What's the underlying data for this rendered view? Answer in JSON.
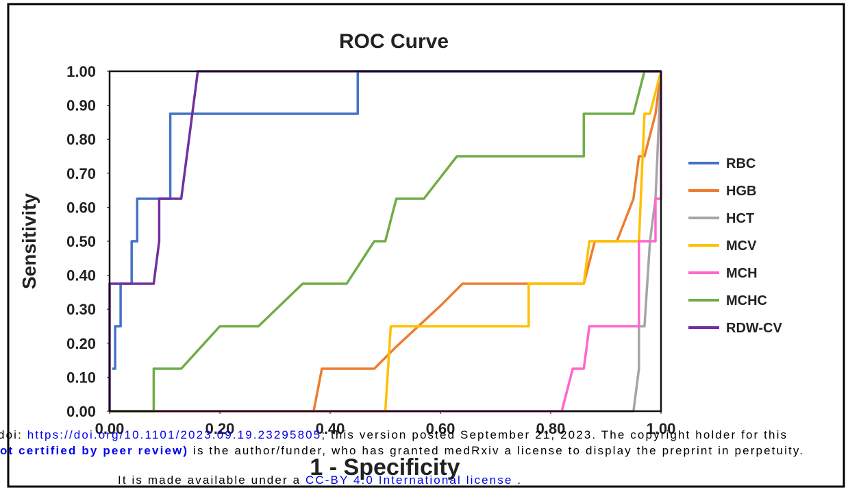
{
  "chart_data": {
    "type": "line",
    "title": "ROC Curve",
    "xlabel": "1 - Specificity",
    "ylabel": "Sensitivity",
    "xlim": [
      0,
      1
    ],
    "ylim": [
      0,
      1
    ],
    "xticks": [
      {
        "value": 0,
        "label": "0.00"
      },
      {
        "value": 0.2,
        "label": "0.20"
      },
      {
        "value": 0.4,
        "label": "0.40"
      },
      {
        "value": 0.6,
        "label": "0.60"
      },
      {
        "value": 0.8,
        "label": "0.80"
      },
      {
        "value": 1,
        "label": "1.00"
      }
    ],
    "yticks": [
      {
        "value": 0,
        "label": "0.00"
      },
      {
        "value": 0.1,
        "label": "0.10"
      },
      {
        "value": 0.2,
        "label": "0.20"
      },
      {
        "value": 0.3,
        "label": "0.30"
      },
      {
        "value": 0.4,
        "label": "0.40"
      },
      {
        "value": 0.5,
        "label": "0.50"
      },
      {
        "value": 0.6,
        "label": "0.60"
      },
      {
        "value": 0.7,
        "label": "0.70"
      },
      {
        "value": 0.8,
        "label": "0.80"
      },
      {
        "value": 0.9,
        "label": "0.90"
      },
      {
        "value": 1,
        "label": "1.00"
      }
    ],
    "grid": false,
    "legend": "right",
    "series": [
      {
        "name": "RBC",
        "color": "#4472c4",
        "x": [
          0.005,
          0.01,
          0.01,
          0.02,
          0.02,
          0.04,
          0.04,
          0.05,
          0.05,
          0.11,
          0.11,
          0.45,
          0.45,
          1.0
        ],
        "values": [
          0.125,
          0.125,
          0.25,
          0.25,
          0.375,
          0.375,
          0.5,
          0.5,
          0.625,
          0.625,
          0.875,
          0.875,
          1.0,
          1.0
        ]
      },
      {
        "name": "HGB",
        "color": "#ed7d31",
        "x": [
          0,
          0.37,
          0.385,
          0.48,
          0.52,
          0.6,
          0.64,
          0.86,
          0.88,
          0.92,
          0.95,
          0.96,
          0.97,
          0.99,
          1.0
        ],
        "values": [
          0,
          0,
          0.125,
          0.125,
          0.19,
          0.31,
          0.375,
          0.375,
          0.5,
          0.5,
          0.625,
          0.75,
          0.75,
          0.875,
          1.0
        ]
      },
      {
        "name": "HCT",
        "color": "#a5a5a5",
        "x": [
          0,
          0.95,
          0.96,
          0.96,
          0.97,
          0.98,
          0.99,
          1.0
        ],
        "values": [
          0,
          0,
          0.125,
          0.25,
          0.25,
          0.5,
          0.625,
          1.0
        ]
      },
      {
        "name": "MCV",
        "color": "#ffc000",
        "x": [
          0,
          0.5,
          0.51,
          0.76,
          0.76,
          0.86,
          0.87,
          0.96,
          0.97,
          0.98,
          1.0
        ],
        "values": [
          0,
          0,
          0.25,
          0.25,
          0.375,
          0.375,
          0.5,
          0.5,
          0.875,
          0.875,
          1.0
        ]
      },
      {
        "name": "MCH",
        "color": "#ff66cc",
        "x": [
          0,
          0.82,
          0.84,
          0.86,
          0.87,
          0.96,
          0.96,
          0.99,
          0.99,
          1.0,
          1.0
        ],
        "values": [
          0,
          0,
          0.125,
          0.125,
          0.25,
          0.25,
          0.5,
          0.5,
          0.625,
          0.625,
          1.0
        ]
      },
      {
        "name": "MCHC",
        "color": "#70ad47",
        "x": [
          0,
          0.08,
          0.08,
          0.13,
          0.2,
          0.27,
          0.35,
          0.43,
          0.48,
          0.5,
          0.52,
          0.57,
          0.63,
          0.86,
          0.86,
          0.95,
          0.97,
          1.0
        ],
        "values": [
          0,
          0,
          0.125,
          0.125,
          0.25,
          0.25,
          0.375,
          0.375,
          0.5,
          0.5,
          0.625,
          0.625,
          0.75,
          0.75,
          0.875,
          0.875,
          1.0,
          1.0
        ]
      },
      {
        "name": "RDW-CV",
        "color": "#7030a0",
        "x": [
          0,
          0,
          0.08,
          0.09,
          0.09,
          0.13,
          0.16,
          1.0
        ],
        "values": [
          0,
          0.375,
          0.375,
          0.5,
          0.625,
          0.625,
          1.0,
          1.0
        ]
      }
    ]
  },
  "notice": {
    "line1": [
      "doi:",
      "https://doi.org/10.1101/2023.09.19.23295805",
      "; this version posted September 21, 2023. The copyright holder for this"
    ],
    "line2": [
      "ot certified by peer review)",
      " is the author/funder, who has granted medRxiv a license to display the preprint in perpetuity."
    ],
    "line3": [
      "It is made available under a ",
      "CC-BY 4.0 International license",
      " ."
    ]
  }
}
